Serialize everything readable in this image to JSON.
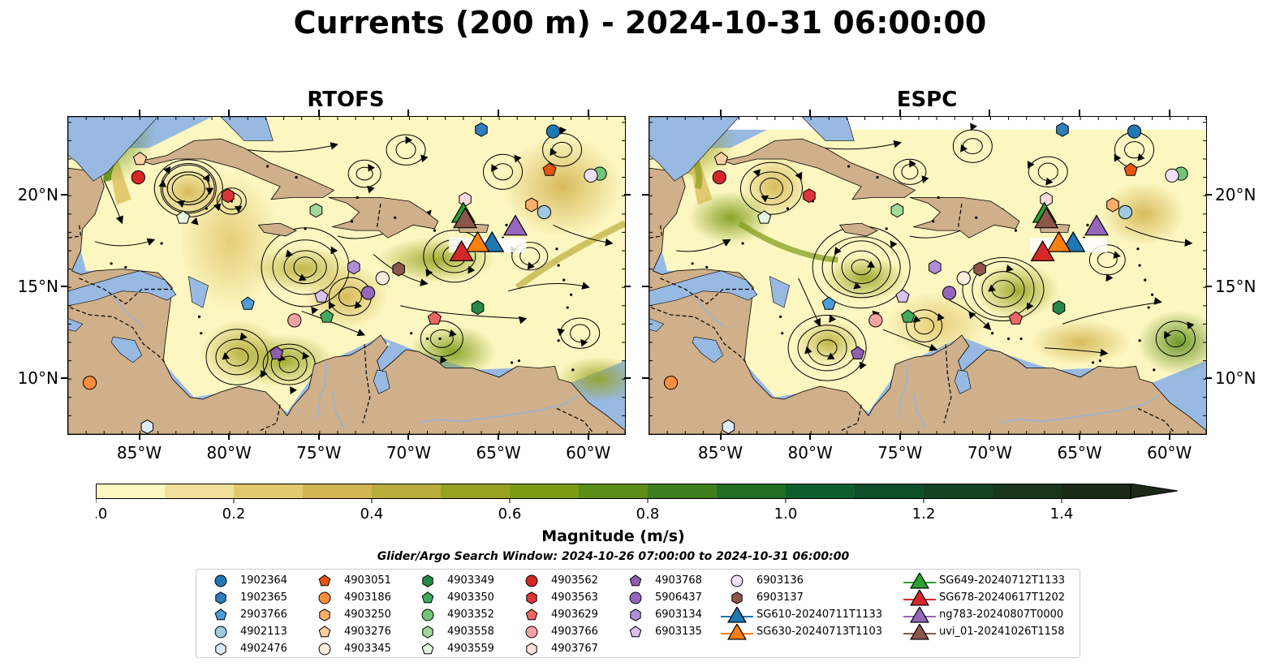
{
  "title": "Currents (200 m) - 2024-10-31 06:00:00",
  "panels": [
    {
      "title": "RTOFS"
    },
    {
      "title": "ESPC"
    }
  ],
  "axes": {
    "lon_labels": [
      "85°W",
      "80°W",
      "75°W",
      "70°W",
      "65°W",
      "60°W"
    ],
    "lon_values": [
      -85,
      -80,
      -75,
      -70,
      -65,
      -60
    ],
    "lat_labels": [
      "20°N",
      "15°N",
      "10°N"
    ],
    "lat_values": [
      20,
      15,
      10
    ],
    "lon_range": [
      -89,
      -58
    ],
    "lat_range": [
      7,
      24.3
    ]
  },
  "colorbar": {
    "label": "Magnitude (m/s)",
    "tick_labels": [
      "0.0",
      "0.2",
      "0.4",
      "0.6",
      "0.8",
      "1.0",
      "1.2",
      "1.4"
    ],
    "tick_values": [
      0,
      0.2,
      0.4,
      0.6,
      0.8,
      1.0,
      1.2,
      1.4
    ],
    "range": [
      0,
      1.5
    ],
    "extend": "max",
    "colors": [
      "#fcf6c0",
      "#f0e09a",
      "#e2c970",
      "#d3b552",
      "#b9ae3c",
      "#98a323",
      "#7b9a16",
      "#5c8d17",
      "#3e7f1d",
      "#1f6e24",
      "#0e5e2c",
      "#0d4f28",
      "#144322",
      "#19361c",
      "#1b2a17"
    ]
  },
  "search_window": "Glider/Argo Search Window: 2024-10-26 07:00:00 to 2024-10-31 06:00:00",
  "colors": {
    "land": "#cfb08a",
    "water": "#98b9e2"
  },
  "legend": [
    {
      "label": "1902364",
      "shape": "circle",
      "color": "#1f77b4"
    },
    {
      "label": "1902365",
      "shape": "hexagon",
      "color": "#2f7ebc"
    },
    {
      "label": "2903766",
      "shape": "pentagon",
      "color": "#4d9cd6"
    },
    {
      "label": "4902113",
      "shape": "circle",
      "color": "#9ecae1"
    },
    {
      "label": "4902476",
      "shape": "hexagon",
      "color": "#deebf7"
    },
    {
      "label": "4903051",
      "shape": "pentagon",
      "color": "#e6550d"
    },
    {
      "label": "4903186",
      "shape": "circle",
      "color": "#fd8d3c"
    },
    {
      "label": "4903250",
      "shape": "hexagon",
      "color": "#fdae6b"
    },
    {
      "label": "4903276",
      "shape": "pentagon",
      "color": "#fdd0a2"
    },
    {
      "label": "4903345",
      "shape": "circle",
      "color": "#feedde"
    },
    {
      "label": "4903349",
      "shape": "hexagon",
      "color": "#238b45"
    },
    {
      "label": "4903350",
      "shape": "pentagon",
      "color": "#41ab5d"
    },
    {
      "label": "4903352",
      "shape": "circle",
      "color": "#74c476"
    },
    {
      "label": "4903558",
      "shape": "hexagon",
      "color": "#a1d99b"
    },
    {
      "label": "4903559",
      "shape": "pentagon",
      "color": "#e5f5e0"
    },
    {
      "label": "4903562",
      "shape": "circle",
      "color": "#d62728"
    },
    {
      "label": "4903563",
      "shape": "hexagon",
      "color": "#d9363a"
    },
    {
      "label": "4903629",
      "shape": "pentagon",
      "color": "#ef6565"
    },
    {
      "label": "4903766",
      "shape": "circle",
      "color": "#f4a3a3"
    },
    {
      "label": "4903767",
      "shape": "hexagon",
      "color": "#fcdcdc"
    },
    {
      "label": "4903768",
      "shape": "pentagon",
      "color": "#8c5fb0"
    },
    {
      "label": "5906437",
      "shape": "circle",
      "color": "#9467bd"
    },
    {
      "label": "6903134",
      "shape": "hexagon",
      "color": "#b08ed6"
    },
    {
      "label": "6903135",
      "shape": "pentagon",
      "color": "#d8c4ef"
    },
    {
      "label": "6903136",
      "shape": "circle",
      "color": "#efe1fb"
    },
    {
      "label": "6903137",
      "shape": "hexagon",
      "color": "#8c564b"
    },
    {
      "label": "SG610-20240711T1133",
      "shape": "triangle",
      "color": "#1f77b4"
    },
    {
      "label": "SG630-20240713T1103",
      "shape": "triangle",
      "color": "#ff7f0e"
    },
    {
      "label": "SG649-20240712T1133",
      "shape": "triangle",
      "color": "#2ca02c"
    },
    {
      "label": "SG678-20240617T1202",
      "shape": "triangle",
      "color": "#d62728"
    },
    {
      "label": "ng783-20240807T0000",
      "shape": "triangle",
      "color": "#9467bd"
    },
    {
      "label": "uvi_01-20241026T1158",
      "shape": "triangle",
      "color": "#8c564b"
    }
  ],
  "floats": [
    {
      "label": "1902364",
      "lon": -62,
      "lat": 23.5
    },
    {
      "label": "1902365",
      "lon": -66,
      "lat": 23.6
    },
    {
      "label": "2903766",
      "lon": -79,
      "lat": 14.1
    },
    {
      "label": "4902113",
      "lon": -62.5,
      "lat": 19.1
    },
    {
      "label": "4902476",
      "lon": -84.6,
      "lat": 7.4
    },
    {
      "label": "4903051",
      "lon": -62.2,
      "lat": 21.4
    },
    {
      "label": "4903186",
      "lon": -87.8,
      "lat": 9.8
    },
    {
      "label": "4903250",
      "lon": -63.2,
      "lat": 19.5
    },
    {
      "label": "4903276",
      "lon": -85,
      "lat": 22
    },
    {
      "label": "4903345",
      "lon": -71.5,
      "lat": 15.5
    },
    {
      "label": "4903349",
      "lon": -66.2,
      "lat": 13.9
    },
    {
      "label": "4903350",
      "lon": -74.6,
      "lat": 13.4
    },
    {
      "label": "4903352",
      "lon": -59.4,
      "lat": 21.2
    },
    {
      "label": "4903558",
      "lon": -75.2,
      "lat": 19.2
    },
    {
      "label": "4903559",
      "lon": -82.6,
      "lat": 18.8
    },
    {
      "label": "4903562",
      "lon": -85.1,
      "lat": 21
    },
    {
      "label": "4903563",
      "lon": -80.1,
      "lat": 20
    },
    {
      "label": "4903629",
      "lon": -68.6,
      "lat": 13.3
    },
    {
      "label": "4903766",
      "lon": -76.4,
      "lat": 13.2
    },
    {
      "label": "4903767",
      "lon": -66.9,
      "lat": 19.8
    },
    {
      "label": "4903768",
      "lon": -77.4,
      "lat": 11.4
    },
    {
      "label": "5906437",
      "lon": -72.3,
      "lat": 14.7
    },
    {
      "label": "6903134",
      "lon": -73.1,
      "lat": 16.1
    },
    {
      "label": "6903135",
      "lon": -74.9,
      "lat": 14.5
    },
    {
      "label": "6903136",
      "lon": -59.9,
      "lat": 21.1
    },
    {
      "label": "6903137",
      "lon": -70.6,
      "lat": 16
    }
  ],
  "gliders": [
    {
      "label": "SG610-20240711T1133",
      "lon": -65.4,
      "lat": 17.4
    },
    {
      "label": "SG630-20240713T1103",
      "lon": -66.2,
      "lat": 17.4
    },
    {
      "label": "SG649-20240712T1133",
      "lon": -67,
      "lat": 19
    },
    {
      "label": "SG678-20240617T1202",
      "lon": -67.1,
      "lat": 16.9
    },
    {
      "label": "ng783-20240807T0000",
      "lon": -64.1,
      "lat": 18.3
    },
    {
      "label": "uvi_01-20241026T1158",
      "lon": -66.9,
      "lat": 18.7
    }
  ]
}
